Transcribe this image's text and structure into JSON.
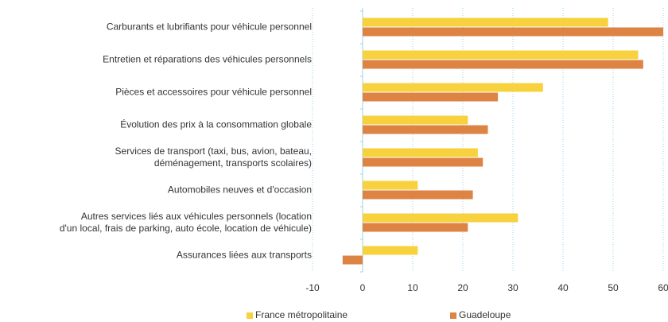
{
  "chart_data": {
    "type": "bar",
    "orientation": "horizontal",
    "categories": [
      [
        "Carburants et lubrifiants pour véhicule personnel"
      ],
      [
        "Entretien et réparations des véhicules personnels"
      ],
      [
        "Pièces et accessoires pour véhicule personnel"
      ],
      [
        "Évolution des prix à la consommation globale"
      ],
      [
        "Services de transport (taxi, bus, avion, bateau,",
        "déménagement, transports scolaires)"
      ],
      [
        "Automobiles neuves et d'occasion"
      ],
      [
        "Autres services liés aux véhicules personnels  (location",
        "d'un local, frais de parking, auto école, location de véhicule)"
      ],
      [
        "Assurances liées aux transports"
      ]
    ],
    "series": [
      {
        "name": "France métropolitaine",
        "color": "#f7d23e",
        "values": [
          49,
          55,
          36,
          21,
          23,
          11,
          31,
          11
        ]
      },
      {
        "name": "Guadeloupe",
        "color": "#dd8444",
        "values": [
          60,
          56,
          27,
          25,
          24,
          22,
          21,
          -4
        ]
      }
    ],
    "xlim": [
      -10,
      60
    ],
    "xticks": [
      -10,
      0,
      10,
      20,
      30,
      40,
      50,
      60
    ],
    "grid": true,
    "legend": "bottom"
  }
}
